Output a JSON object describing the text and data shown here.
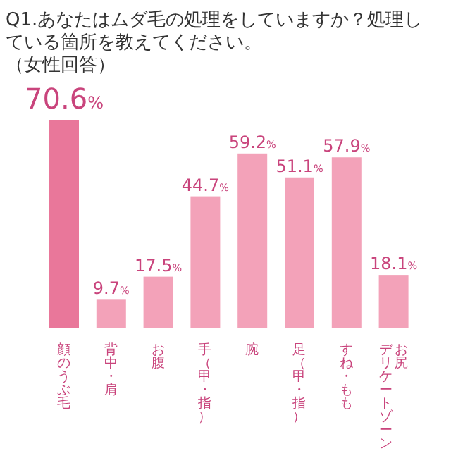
{
  "chart_data": {
    "type": "bar",
    "title": "Q1.あなたはムダ毛の処理をしていますか？処理している箇所を教えてください。",
    "subtitle": "（女性回答）",
    "categories": [
      "顔のうぶ毛",
      "背中・肩",
      "お腹",
      "手（甲・指）",
      "腕",
      "足（甲・指）",
      "すね・もも",
      "お尻デリケートゾーン"
    ],
    "values": [
      70.6,
      9.7,
      17.5,
      44.7,
      59.2,
      51.1,
      57.9,
      18.1
    ],
    "colors": [
      "#e9779a",
      "#f3a2b9",
      "#f3a2b9",
      "#f3a2b9",
      "#f3a2b9",
      "#f3a2b9",
      "#f3a2b9",
      "#f3a2b9"
    ],
    "value_labels": [
      "70.6%",
      "9.7%",
      "17.5%",
      "44.7%",
      "59.2%",
      "51.1%",
      "57.9%",
      "18.1%"
    ]
  }
}
